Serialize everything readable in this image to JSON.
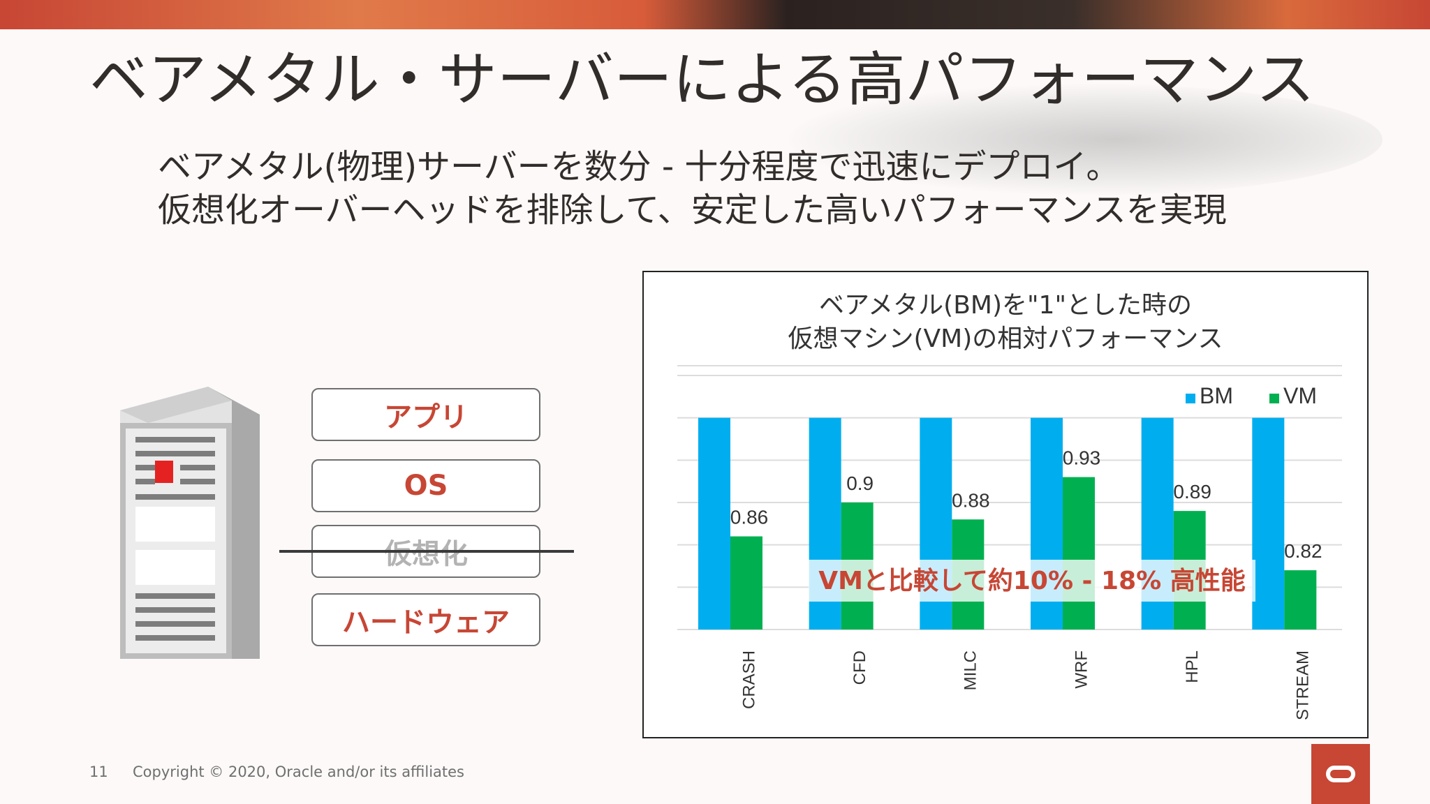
{
  "slide": {
    "title": "ベアメタル・サーバーによる高パフォーマンス",
    "subtitle_line1": "ベアメタル(物理)サーバーを数分 - 十分程度で迅速にデプロイ。",
    "subtitle_line2": "仮想化オーバーヘッドを排除して、安定した高いパフォーマンスを実現"
  },
  "stack": {
    "app": "アプリ",
    "os": "OS",
    "virtualization": "仮想化",
    "hardware": "ハードウェア"
  },
  "footer": {
    "page_number": "11",
    "copyright": "Copyright © 2020, Oracle and/or its affiliates"
  },
  "colors": {
    "bm": "#00aeef",
    "vm": "#00b050",
    "accent": "#c74634"
  },
  "chart_data": {
    "type": "bar",
    "title_line1": "ベアメタル(BM)を\"1\"とした時の",
    "title_line2": "仮想マシン(VM)の相対パフォーマンス",
    "categories": [
      "CRASH",
      "CFD",
      "MILC",
      "WRF",
      "HPL",
      "STREAM"
    ],
    "series": [
      {
        "name": "BM",
        "values": [
          1,
          1,
          1,
          1,
          1,
          1
        ]
      },
      {
        "name": "VM",
        "values": [
          0.86,
          0.9,
          0.88,
          0.93,
          0.89,
          0.82
        ]
      }
    ],
    "data_labels": [
      "0.86",
      "0.9",
      "0.88",
      "0.93",
      "0.89",
      "0.82"
    ],
    "ylim": [
      0.75,
      1.05
    ],
    "grid": true,
    "legend": "top-right",
    "annotation": "VMと比較して約10% - 18% 高性能"
  }
}
